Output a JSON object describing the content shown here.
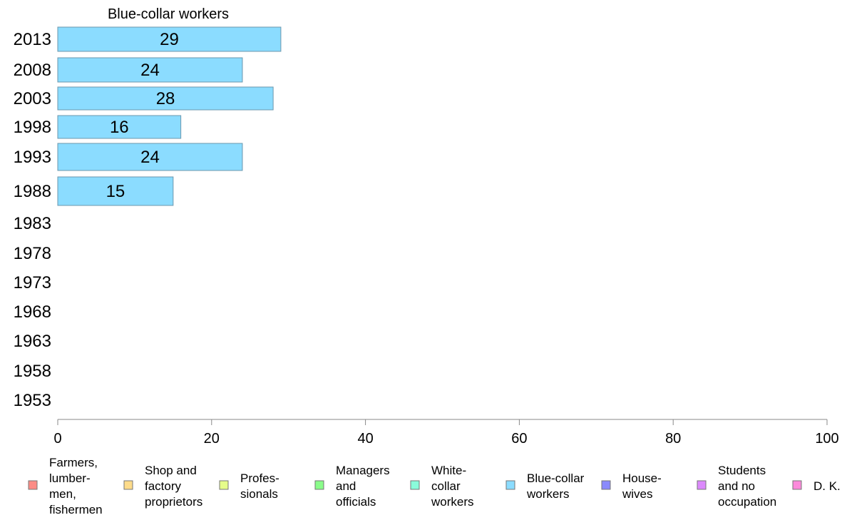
{
  "chart_data": {
    "type": "bar",
    "orientation": "horizontal",
    "title": "Blue-collar workers",
    "categories": [
      "2013",
      "2008",
      "2003",
      "1998",
      "1993",
      "1988",
      "1983",
      "1978",
      "1973",
      "1968",
      "1963",
      "1958",
      "1953"
    ],
    "series": [
      {
        "name": "Blue-collar workers",
        "color": "#8bdcff",
        "values": [
          29,
          24,
          28,
          16,
          24,
          15,
          null,
          null,
          null,
          null,
          null,
          null,
          null
        ]
      }
    ],
    "xlim": [
      0,
      100
    ],
    "xticks": [
      "0",
      "20",
      "40",
      "60",
      "80",
      "100"
    ],
    "grid": false,
    "legend_position": "bottom",
    "legend": [
      {
        "lines": [
          "Farmers,",
          "lumber-",
          "men,",
          "fishermen"
        ],
        "color": "#fc8c86"
      },
      {
        "lines": [
          "Shop and",
          "factory",
          "proprietors"
        ],
        "color": "#fddb8a"
      },
      {
        "lines": [
          "Profes-",
          "sionals"
        ],
        "color": "#e6fd8a"
      },
      {
        "lines": [
          "Managers",
          "and",
          "officials"
        ],
        "color": "#8afc8a"
      },
      {
        "lines": [
          "White-",
          "collar",
          "workers"
        ],
        "color": "#8afcdb"
      },
      {
        "lines": [
          "Blue-collar",
          "workers"
        ],
        "color": "#8bdcff"
      },
      {
        "lines": [
          "House-",
          "wives"
        ],
        "color": "#8a8afc"
      },
      {
        "lines": [
          "Students",
          "and no",
          "occupation"
        ],
        "color": "#dc8afc"
      },
      {
        "lines": [
          "D. K."
        ],
        "color": "#fc8adb"
      }
    ]
  }
}
